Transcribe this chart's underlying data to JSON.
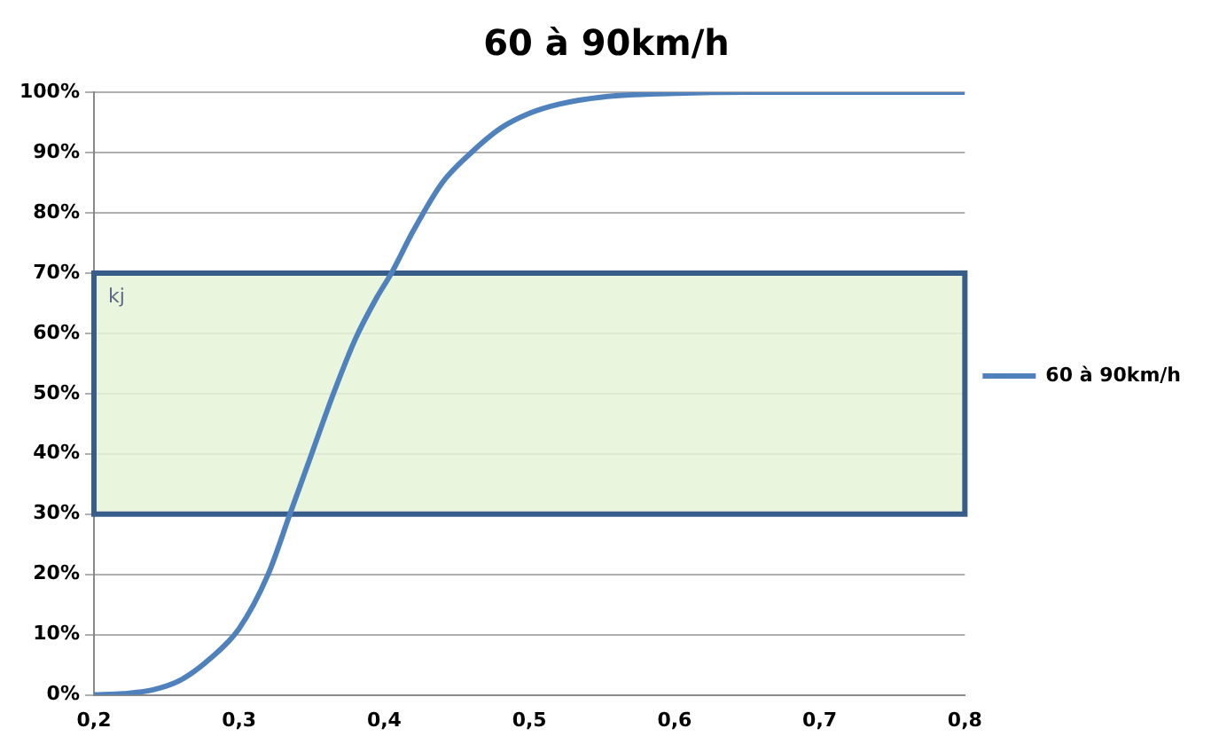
{
  "chart_data": {
    "type": "line",
    "title": "60 à 90km/h",
    "x": [
      0.2,
      0.22,
      0.24,
      0.26,
      0.28,
      0.3,
      0.32,
      0.335,
      0.35,
      0.365,
      0.38,
      0.395,
      0.405,
      0.42,
      0.44,
      0.46,
      0.48,
      0.5,
      0.52,
      0.55,
      0.6,
      0.65,
      0.7,
      0.8
    ],
    "series": [
      {
        "name": "60 à 90km/h",
        "color": "#4f81bd",
        "values": [
          0,
          0.2,
          0.8,
          2.5,
          6,
          11,
          20,
          30,
          40,
          50,
          59,
          66,
          70,
          77,
          85,
          90,
          94,
          96.5,
          98,
          99.2,
          99.8,
          100,
          100,
          100
        ]
      }
    ],
    "xlim": [
      0.2,
      0.8
    ],
    "xticks": [
      {
        "value": 0.2,
        "label": "0,2"
      },
      {
        "value": 0.3,
        "label": "0,3"
      },
      {
        "value": 0.4,
        "label": "0,4"
      },
      {
        "value": 0.5,
        "label": "0,5"
      },
      {
        "value": 0.6,
        "label": "0,6"
      },
      {
        "value": 0.7,
        "label": "0,7"
      },
      {
        "value": 0.8,
        "label": "0,8"
      }
    ],
    "ylim": [
      0,
      100
    ],
    "yticks": [
      {
        "value": 0,
        "label": "0%"
      },
      {
        "value": 10,
        "label": "10%"
      },
      {
        "value": 20,
        "label": "20%"
      },
      {
        "value": 30,
        "label": "30%"
      },
      {
        "value": 40,
        "label": "40%"
      },
      {
        "value": 50,
        "label": "50%"
      },
      {
        "value": 60,
        "label": "60%"
      },
      {
        "value": 70,
        "label": "70%"
      },
      {
        "value": 80,
        "label": "80%"
      },
      {
        "value": 90,
        "label": "90%"
      },
      {
        "value": 100,
        "label": "100%"
      }
    ],
    "bands": [
      {
        "axis": "y",
        "from": 30,
        "to": 70,
        "label": "kj",
        "color": "#e6f3d8"
      }
    ],
    "grid": "y",
    "legend": "right",
    "marker": "none",
    "line_style": "solid"
  }
}
